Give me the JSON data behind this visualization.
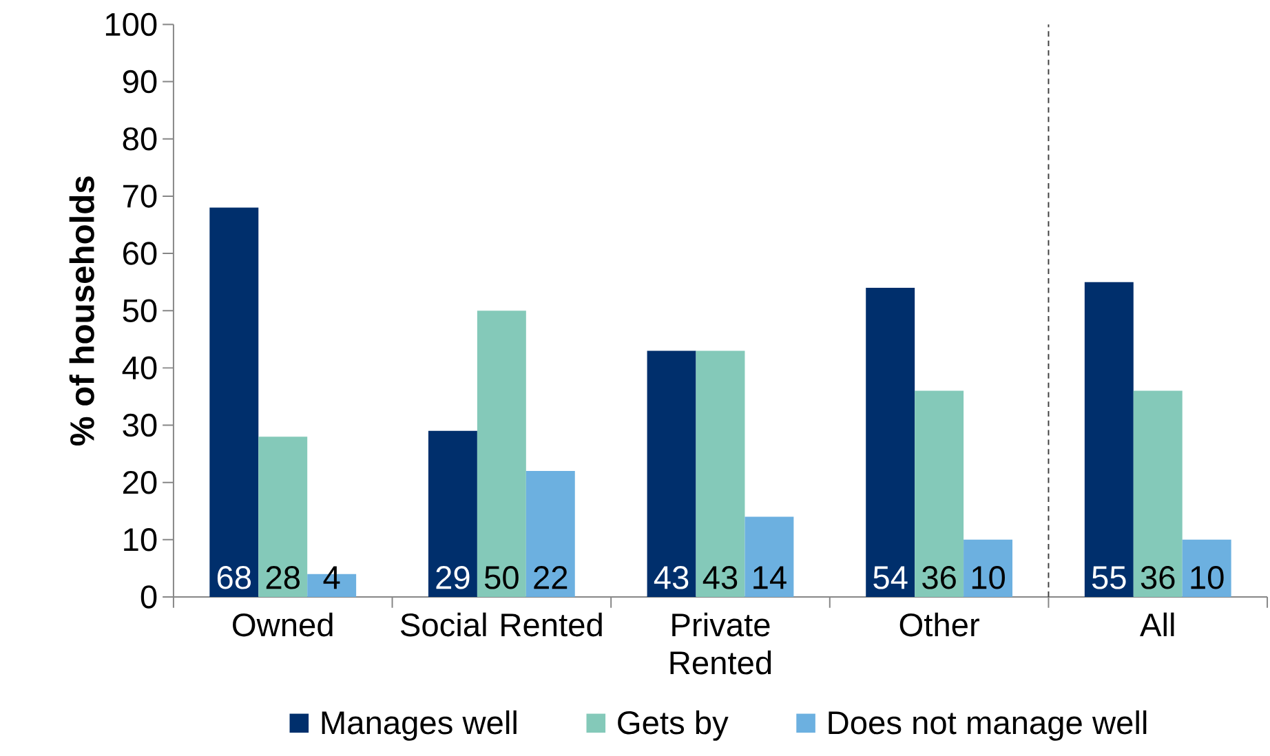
{
  "chart_data": {
    "type": "bar",
    "ylabel": "% of households",
    "categories": [
      "Owned",
      "Social Rented",
      "Private Rented",
      "Other",
      "All"
    ],
    "series": [
      {
        "name": "Manages well",
        "color": "#002f6c",
        "values": [
          68,
          29,
          43,
          54,
          55
        ]
      },
      {
        "name": "Gets by",
        "color": "#84c9b9",
        "values": [
          28,
          50,
          43,
          36,
          36
        ]
      },
      {
        "name": "Does not manage well",
        "color": "#6cb0e0",
        "values": [
          4,
          22,
          14,
          10,
          10
        ]
      }
    ],
    "ylim": [
      0,
      100
    ],
    "yticks": [
      0,
      10,
      20,
      30,
      40,
      50,
      60,
      70,
      80,
      90,
      100
    ],
    "data_labels": true,
    "legend": "bottom",
    "grid": false
  }
}
